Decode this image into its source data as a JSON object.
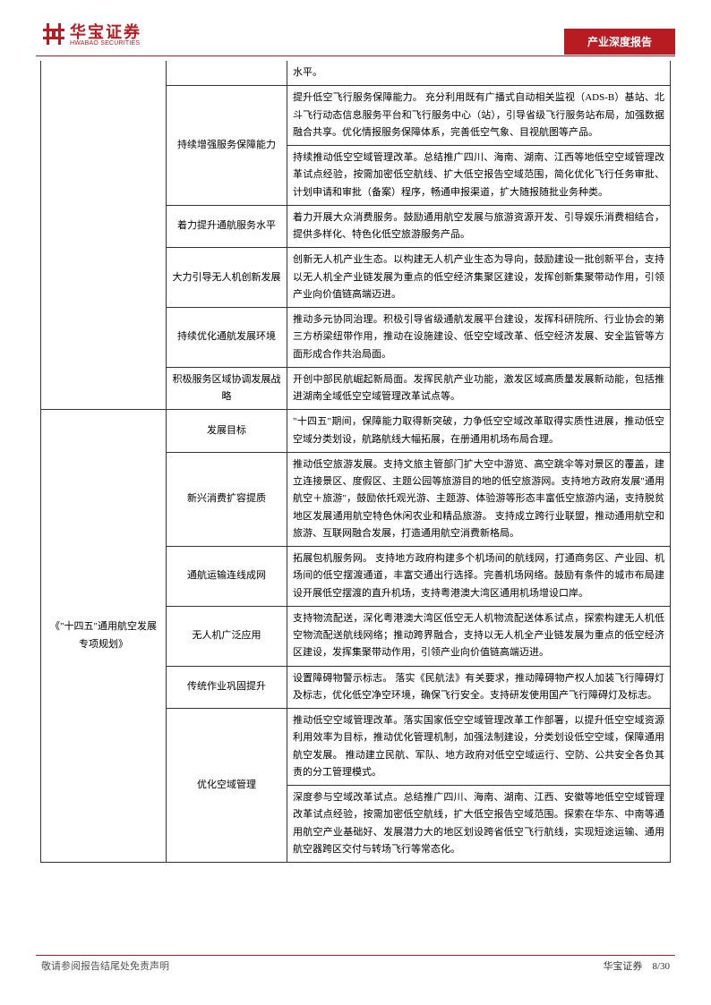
{
  "header": {
    "logo_cn": "华宝证券",
    "logo_en": "HWABAO SECURITIES",
    "badge": "产业深度报告"
  },
  "table": {
    "rows": [
      {
        "c3": "水平。"
      },
      {
        "c2": "持续增强服务保障能力",
        "c2_rowspan": 2,
        "c3": "提升低空飞行服务保障能力。 充分利用既有广播式自动相关监视（ADS-B）基站、北斗飞行动态信息服务平台和飞行服务中心（站），引导省级飞行服务站布局，加强数据融合共享。优化情报服务保障体系，完善低空气象、目视航图等产品。"
      },
      {
        "c3": "持续推动低空空域管理改革。总结推广四川、海南、湖南、江西等地低空空域管理改革试点经验，按需加密低空航线、扩大低空报告空域范围，简化优化飞行任务审批、计划申请和审批（备案）程序，畅通申报渠道，扩大随报随批业务种类。"
      },
      {
        "c2": "着力提升通航服务水平",
        "c3": "着力开展大众消费服务。鼓励通用航空发展与旅游资源开发、引导娱乐消费相结合，提供多样化、特色化低空旅游服务产品。"
      },
      {
        "c2": "大力引导无人机创新发展",
        "c3": "创新无人机产业生态。以构建无人机产业生态为导向，鼓励建设一批创新平台，支持以无人机全产业链发展为重点的低空经济集聚区建设，发挥创新集聚带动作用，引领产业向价值链高端迈进。"
      },
      {
        "c2": "持续优化通航发展环境",
        "c3": "推动多元协同治理。积极引导省级通航发展平台建设，发挥科研院所、行业协会的第三方桥梁纽带作用，推动在设施建设、低空空域改革、低空经济发展、安全监管等方面形成合作共治局面。"
      },
      {
        "c2": "积极服务区域协调发展战略",
        "c3": "开创中部民航崛起新局面。发挥民航产业功能，激发区域高质量发展新动能，包括推进湖南全域低空空域管理改革试点等。"
      },
      {
        "c1": "《\"十四五\"通用航空发展专项规划》",
        "c1_rowspan": 7,
        "c2": "发展目标",
        "c3": "\"十四五\"期间，保障能力取得新突破，力争低空空域改革取得实质性进展，推动低空空域分类划设，航路航线大幅拓展，在册通用机场布局合理。"
      },
      {
        "c2": "新兴消费扩容提质",
        "c3": "推动低空旅游发展。支持文旅主管部门扩大空中游览、高空跳伞等对景区的覆盖，建立连接景区、度假区、主题公园等旅游目的地的低空旅游网。支持地方政府发展\"通用航空＋旅游\"，鼓励依托观光游、主题游、体验游等形态丰富低空旅游内涵，支持脱贫地区发展通用航空特色休闲农业和精品旅游。 支持成立跨行业联盟，推动通用航空和旅游、互联网融合发展，打造通用航空消费新格局。"
      },
      {
        "c2": "通航运输连线成网",
        "c3": "拓展包机服务网。 支持地方政府构建多个机场间的航线网，打通商务区、产业园、机场间的低空摆渡通道，丰富交通出行选择。完善机场网络。鼓励有条件的城市布局建设开展低空摆渡的直升机场，支持粤港澳大湾区通用机场增设口岸。"
      },
      {
        "c2": "无人机广泛应用",
        "c3": "支持物流配送，深化粤港澳大湾区低空无人机物流配送体系试点，探索构建无人机低空物流配送航线网络；推动跨界融合，支持以无人机全产业链发展为重点的低空经济区建设，发挥集聚带动作用，引领产业向价值链高端迈进。"
      },
      {
        "c2": "传统作业巩固提升",
        "c3": "设置障碍物警示标志。 落实《民航法》有关要求，推动障碍物产权人加装飞行障碍灯及标志，优化低空净空环境，确保飞行安全。支持研发使用国产飞行障碍灯及标志。"
      },
      {
        "c2": "优化空域管理",
        "c2_rowspan": 2,
        "c3": "推动低空空域管理改革。落实国家低空空域管理改革工作部署，以提升低空空域资源利用效率为目标，推动优化管理机制，加强法制建设，分类划设低空空域，保障通用航空发展。 推动建立民航、军队、地方政府对低空空域运行、空防、公共安全各负其责的分工管理模式。"
      },
      {
        "c3": "深度参与空域改革试点。总结推广四川、海南、湖南、江西、安徽等地低空空域管理改革试点经验，按需加密低空航线，扩大低空报告空域范围。探索在华东、中南等通用航空产业基础好、发展潜力大的地区划设跨省低空飞行航线，实现短途运输、通用航空器跨区交付与转场飞行等常态化。"
      }
    ]
  },
  "footer": {
    "disclaimer": "敬请参阅报告结尾处免责声明",
    "company": "华宝证券",
    "page": "8/30"
  },
  "colors": {
    "brand": "#b81c22"
  }
}
